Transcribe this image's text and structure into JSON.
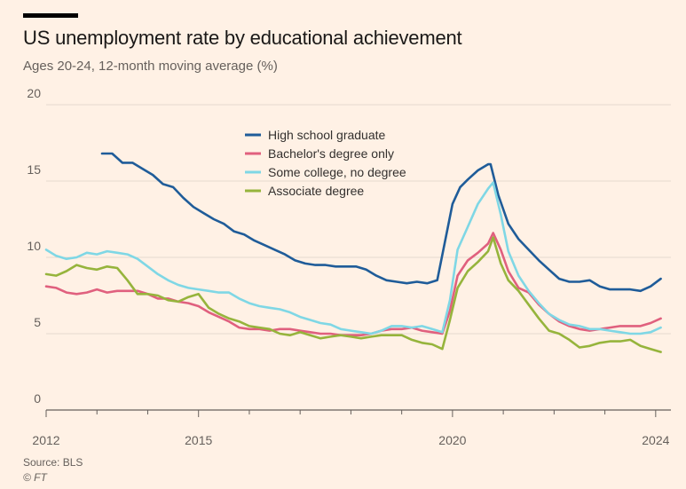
{
  "header": {
    "title": "US unemployment rate by educational achievement",
    "subtitle": "Ages 20-24, 12-month moving average (%)"
  },
  "footer": {
    "source": "Source: BLS",
    "credit": "© FT"
  },
  "chart_data": {
    "type": "line",
    "title": "US unemployment rate by educational achievement",
    "subtitle": "Ages 20-24, 12-month moving average (%)",
    "ylim": [
      0,
      20
    ],
    "xlim": [
      2012,
      2024.3
    ],
    "yticks": [
      0,
      5,
      10,
      15,
      20
    ],
    "xticks": [
      2012,
      2015,
      2020,
      2024
    ],
    "legend_position": "top-center",
    "series": [
      {
        "name": "High school graduate",
        "color": "#1f5c99",
        "x": [
          2013.1,
          2013.3,
          2013.5,
          2013.7,
          2013.9,
          2014.1,
          2014.3,
          2014.5,
          2014.7,
          2014.9,
          2015.1,
          2015.3,
          2015.5,
          2015.7,
          2015.9,
          2016.1,
          2016.3,
          2016.5,
          2016.7,
          2016.9,
          2017.1,
          2017.3,
          2017.5,
          2017.7,
          2017.9,
          2018.1,
          2018.3,
          2018.5,
          2018.7,
          2018.9,
          2019.1,
          2019.3,
          2019.5,
          2019.7,
          2019.85,
          2020.0,
          2020.15,
          2020.3,
          2020.5,
          2020.7,
          2020.75,
          2020.9,
          2021.1,
          2021.3,
          2021.5,
          2021.7,
          2021.9,
          2022.1,
          2022.3,
          2022.5,
          2022.7,
          2022.9,
          2023.1,
          2023.3,
          2023.5,
          2023.7,
          2023.9,
          2024.1
        ],
        "values": [
          16.8,
          16.8,
          16.2,
          16.2,
          15.8,
          15.4,
          14.8,
          14.6,
          13.9,
          13.3,
          12.9,
          12.5,
          12.2,
          11.7,
          11.5,
          11.1,
          10.8,
          10.5,
          10.2,
          9.8,
          9.6,
          9.5,
          9.5,
          9.4,
          9.4,
          9.4,
          9.2,
          8.8,
          8.5,
          8.4,
          8.3,
          8.4,
          8.3,
          8.5,
          11.0,
          13.5,
          14.6,
          15.1,
          15.7,
          16.1,
          16.1,
          14.1,
          12.2,
          11.2,
          10.5,
          9.8,
          9.2,
          8.6,
          8.4,
          8.4,
          8.5,
          8.1,
          7.9,
          7.9,
          7.9,
          7.8,
          8.1,
          8.6
        ]
      },
      {
        "name": "Bachelor's degree only",
        "color": "#e0607e",
        "x": [
          2012.0,
          2012.2,
          2012.4,
          2012.6,
          2012.8,
          2013.0,
          2013.2,
          2013.4,
          2013.6,
          2013.8,
          2014.0,
          2014.2,
          2014.4,
          2014.6,
          2014.8,
          2015.0,
          2015.2,
          2015.4,
          2015.6,
          2015.8,
          2016.0,
          2016.2,
          2016.4,
          2016.6,
          2016.8,
          2017.0,
          2017.2,
          2017.4,
          2017.6,
          2017.8,
          2018.0,
          2018.2,
          2018.4,
          2018.6,
          2018.8,
          2019.0,
          2019.2,
          2019.4,
          2019.6,
          2019.8,
          2019.95,
          2020.1,
          2020.3,
          2020.5,
          2020.7,
          2020.8,
          2020.95,
          2021.1,
          2021.3,
          2021.5,
          2021.7,
          2021.9,
          2022.1,
          2022.3,
          2022.5,
          2022.7,
          2022.9,
          2023.1,
          2023.3,
          2023.5,
          2023.7,
          2023.9,
          2024.1
        ],
        "values": [
          8.1,
          8.0,
          7.7,
          7.6,
          7.7,
          7.9,
          7.7,
          7.8,
          7.8,
          7.8,
          7.6,
          7.3,
          7.3,
          7.1,
          7.0,
          6.8,
          6.4,
          6.1,
          5.8,
          5.4,
          5.3,
          5.3,
          5.2,
          5.3,
          5.3,
          5.2,
          5.1,
          5.0,
          5.0,
          4.9,
          4.9,
          4.9,
          5.0,
          5.2,
          5.3,
          5.3,
          5.4,
          5.2,
          5.1,
          5.0,
          6.5,
          8.8,
          9.8,
          10.3,
          10.9,
          11.6,
          10.5,
          9.1,
          8.0,
          7.7,
          6.9,
          6.3,
          5.8,
          5.5,
          5.3,
          5.2,
          5.3,
          5.4,
          5.5,
          5.5,
          5.5,
          5.7,
          6.0
        ]
      },
      {
        "name": "Some college, no degree",
        "color": "#7fd7e5",
        "x": [
          2012.0,
          2012.2,
          2012.4,
          2012.6,
          2012.8,
          2013.0,
          2013.2,
          2013.4,
          2013.6,
          2013.8,
          2014.0,
          2014.2,
          2014.4,
          2014.6,
          2014.8,
          2015.0,
          2015.2,
          2015.4,
          2015.6,
          2015.8,
          2016.0,
          2016.2,
          2016.4,
          2016.6,
          2016.8,
          2017.0,
          2017.2,
          2017.4,
          2017.6,
          2017.8,
          2018.0,
          2018.2,
          2018.4,
          2018.6,
          2018.8,
          2019.0,
          2019.2,
          2019.4,
          2019.6,
          2019.8,
          2019.95,
          2020.1,
          2020.3,
          2020.5,
          2020.7,
          2020.8,
          2020.95,
          2021.1,
          2021.3,
          2021.5,
          2021.7,
          2021.9,
          2022.1,
          2022.3,
          2022.5,
          2022.7,
          2022.9,
          2023.1,
          2023.3,
          2023.5,
          2023.7,
          2023.9,
          2024.1
        ],
        "values": [
          10.5,
          10.1,
          9.9,
          10.0,
          10.3,
          10.2,
          10.4,
          10.3,
          10.2,
          9.9,
          9.4,
          8.9,
          8.5,
          8.2,
          8.0,
          7.9,
          7.8,
          7.7,
          7.7,
          7.3,
          7.0,
          6.8,
          6.7,
          6.6,
          6.4,
          6.1,
          5.9,
          5.7,
          5.6,
          5.3,
          5.2,
          5.1,
          5.0,
          5.2,
          5.5,
          5.5,
          5.4,
          5.5,
          5.3,
          5.1,
          7.2,
          10.5,
          12.0,
          13.5,
          14.5,
          14.9,
          12.8,
          10.4,
          8.8,
          7.8,
          7.0,
          6.3,
          5.9,
          5.6,
          5.5,
          5.3,
          5.3,
          5.2,
          5.1,
          5.0,
          5.0,
          5.1,
          5.4
        ]
      },
      {
        "name": "Associate degree",
        "color": "#96b43c",
        "x": [
          2012.0,
          2012.2,
          2012.4,
          2012.6,
          2012.8,
          2013.0,
          2013.2,
          2013.4,
          2013.6,
          2013.8,
          2014.0,
          2014.2,
          2014.4,
          2014.6,
          2014.8,
          2015.0,
          2015.2,
          2015.4,
          2015.6,
          2015.8,
          2016.0,
          2016.2,
          2016.4,
          2016.6,
          2016.8,
          2017.0,
          2017.2,
          2017.4,
          2017.6,
          2017.8,
          2018.0,
          2018.2,
          2018.4,
          2018.6,
          2018.8,
          2019.0,
          2019.2,
          2019.4,
          2019.6,
          2019.8,
          2019.95,
          2020.1,
          2020.3,
          2020.5,
          2020.7,
          2020.8,
          2020.95,
          2021.1,
          2021.3,
          2021.5,
          2021.7,
          2021.9,
          2022.1,
          2022.3,
          2022.5,
          2022.7,
          2022.9,
          2023.1,
          2023.3,
          2023.5,
          2023.7,
          2023.9,
          2024.1
        ],
        "values": [
          8.9,
          8.8,
          9.1,
          9.5,
          9.3,
          9.2,
          9.4,
          9.3,
          8.5,
          7.6,
          7.6,
          7.5,
          7.2,
          7.1,
          7.4,
          7.6,
          6.7,
          6.3,
          6.0,
          5.8,
          5.5,
          5.4,
          5.3,
          5.0,
          4.9,
          5.1,
          4.9,
          4.7,
          4.8,
          4.9,
          4.8,
          4.7,
          4.8,
          4.9,
          4.9,
          4.9,
          4.6,
          4.4,
          4.3,
          4.0,
          5.9,
          8.0,
          9.1,
          9.7,
          10.4,
          11.3,
          9.6,
          8.5,
          7.8,
          6.9,
          6.0,
          5.2,
          5.0,
          4.6,
          4.1,
          4.2,
          4.4,
          4.5,
          4.5,
          4.6,
          4.2,
          4.0,
          3.8
        ]
      }
    ]
  }
}
